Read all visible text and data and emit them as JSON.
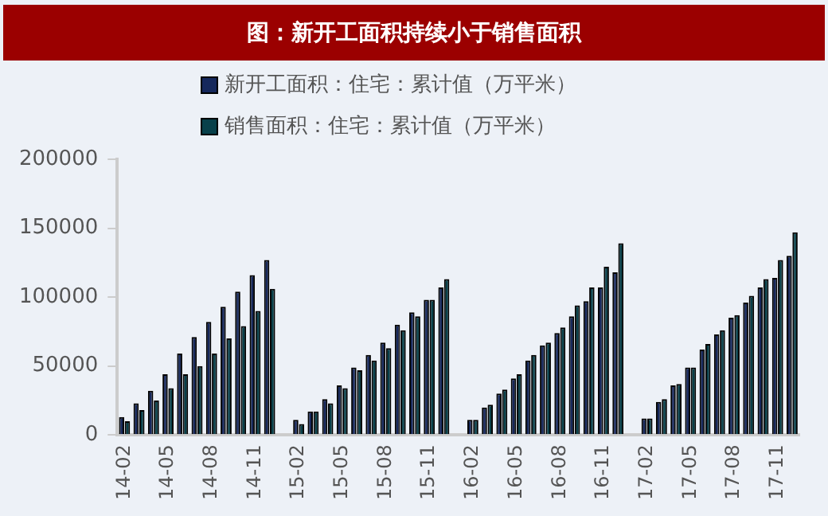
{
  "chart_data": {
    "type": "bar",
    "title": "图：新开工面积持续小于销售面积",
    "categories": [
      "14-02",
      null,
      null,
      "14-05",
      null,
      null,
      "14-08",
      null,
      null,
      "14-11",
      null,
      null,
      "15-02",
      null,
      null,
      "15-05",
      null,
      null,
      "15-08",
      null,
      null,
      "15-11",
      null,
      null,
      "16-02",
      null,
      null,
      "16-05",
      null,
      null,
      "16-08",
      null,
      null,
      "16-11",
      null,
      null,
      "17-02",
      null,
      null,
      "17-05",
      null,
      null,
      "17-08",
      null,
      null,
      "17-11",
      null
    ],
    "series": [
      {
        "name": "新开工面积：住宅：累计值（万平米）",
        "color": "#16285c",
        "values": [
          13000,
          23000,
          32000,
          44000,
          59000,
          71000,
          82000,
          93000,
          104000,
          116000,
          127000,
          null,
          11000,
          17000,
          26000,
          36000,
          49000,
          58000,
          67000,
          80000,
          89000,
          98000,
          107000,
          null,
          11000,
          20000,
          30000,
          41000,
          54000,
          65000,
          74000,
          86000,
          97000,
          107000,
          118000,
          null,
          12000,
          24000,
          36000,
          49000,
          62000,
          73000,
          85000,
          96000,
          107000,
          114000,
          130000
        ]
      },
      {
        "name": "销售面积：住宅：累计值（万平米）",
        "color": "#08404a",
        "values": [
          10000,
          18000,
          25000,
          34000,
          44000,
          50000,
          59000,
          70000,
          79000,
          90000,
          106000,
          null,
          8000,
          17000,
          23000,
          34000,
          47000,
          54000,
          63000,
          76000,
          86000,
          98000,
          113000,
          null,
          11000,
          22000,
          33000,
          44000,
          58000,
          67000,
          78000,
          94000,
          107000,
          122000,
          139000,
          null,
          12000,
          26000,
          37000,
          49000,
          66000,
          76000,
          87000,
          101000,
          113000,
          127000,
          147000
        ]
      }
    ],
    "ylim": [
      0,
      200000
    ],
    "yticks": [
      0,
      50000,
      100000,
      150000,
      200000
    ],
    "grid": false,
    "legend": "top"
  }
}
